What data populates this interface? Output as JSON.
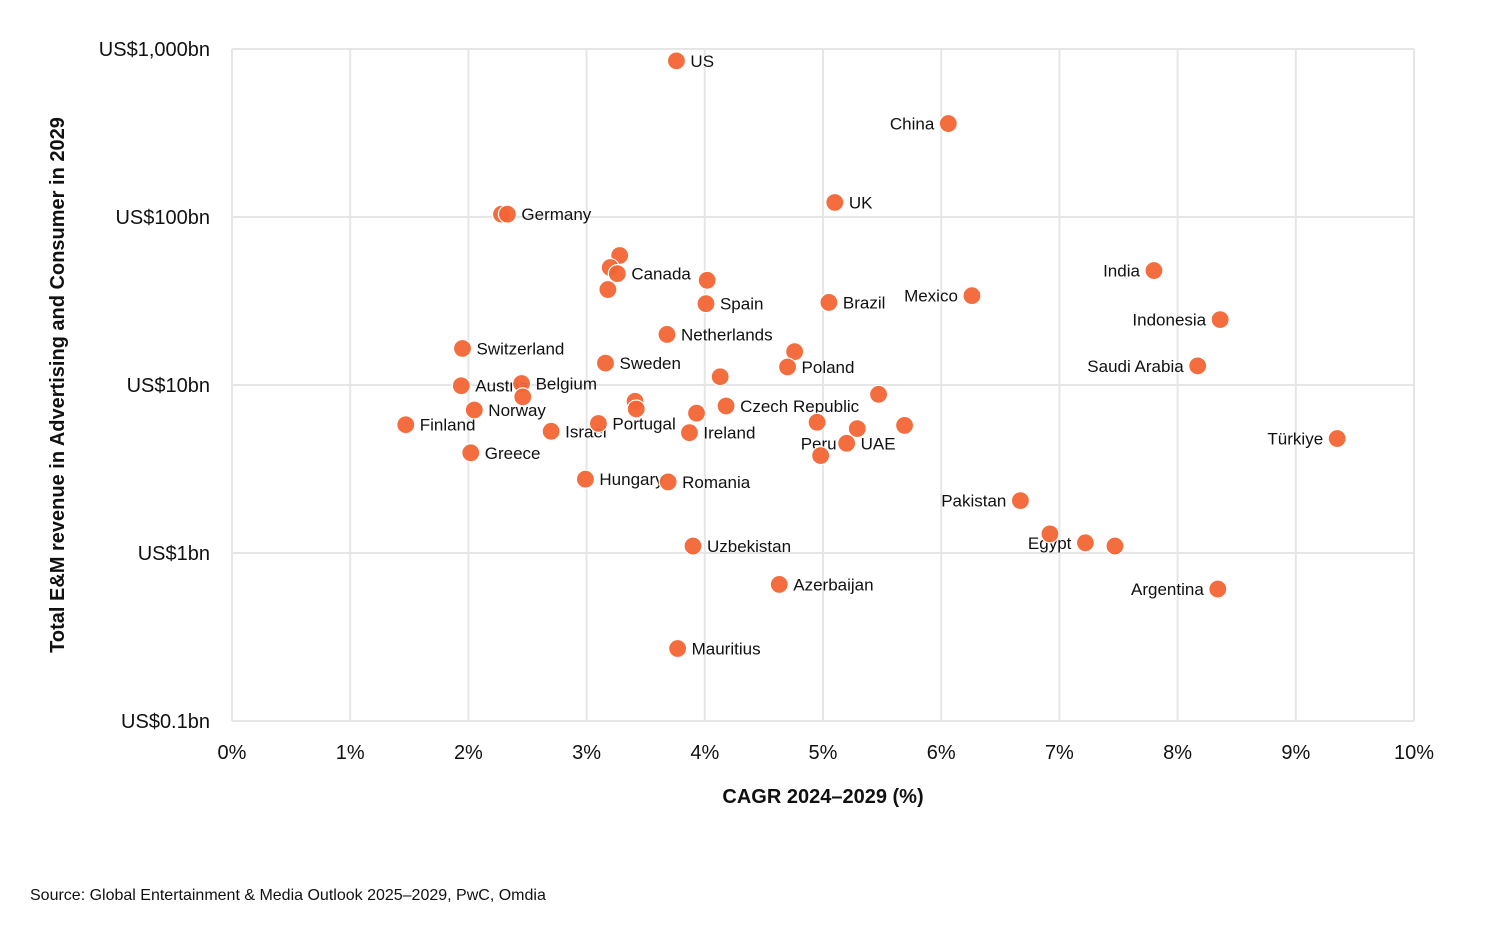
{
  "chart_data": {
    "type": "scatter",
    "xlabel": "CAGR 2024–2029 (%)",
    "ylabel": "Total E&M revenue in Advertising and Consumer in 2029",
    "xlim": [
      0,
      10
    ],
    "ylim": [
      0.1,
      1000
    ],
    "y_scale": "log",
    "grid": true,
    "x_ticks": [
      0,
      1,
      2,
      3,
      4,
      5,
      6,
      7,
      8,
      9,
      10
    ],
    "x_tick_labels": [
      "0%",
      "1%",
      "2%",
      "3%",
      "4%",
      "5%",
      "6%",
      "7%",
      "8%",
      "9%",
      "10%"
    ],
    "y_ticks": [
      0.1,
      1,
      10,
      100,
      1000
    ],
    "y_tick_labels": [
      "US$0.1bn",
      "US$1bn",
      "US$10bn",
      "US$100bn",
      "US$1,000bn"
    ],
    "marker_color": "#f26534",
    "points": [
      {
        "label": "US",
        "x": 3.76,
        "y": 850,
        "label_side": "right"
      },
      {
        "label": "China",
        "x": 6.06,
        "y": 360,
        "label_side": "left"
      },
      {
        "label": "UK",
        "x": 5.1,
        "y": 122,
        "label_side": "right"
      },
      {
        "label": "",
        "x": 2.28,
        "y": 104,
        "label_side": "none"
      },
      {
        "label": "Germany",
        "x": 2.33,
        "y": 104,
        "label_side": "right"
      },
      {
        "label": "",
        "x": 3.28,
        "y": 59,
        "label_side": "none"
      },
      {
        "label": "",
        "x": 3.2,
        "y": 50,
        "label_side": "none"
      },
      {
        "label": "Canada",
        "x": 3.26,
        "y": 46,
        "label_side": "right"
      },
      {
        "label": "",
        "x": 3.18,
        "y": 37,
        "label_side": "none"
      },
      {
        "label": "",
        "x": 4.02,
        "y": 42,
        "label_side": "none"
      },
      {
        "label": "Spain",
        "x": 4.01,
        "y": 30.5,
        "label_side": "right"
      },
      {
        "label": "Brazil",
        "x": 5.05,
        "y": 31,
        "label_side": "right"
      },
      {
        "label": "Mexico",
        "x": 6.26,
        "y": 34,
        "label_side": "left"
      },
      {
        "label": "India",
        "x": 7.8,
        "y": 48,
        "label_side": "left"
      },
      {
        "label": "Indonesia",
        "x": 8.36,
        "y": 24.5,
        "label_side": "left"
      },
      {
        "label": "Netherlands",
        "x": 3.68,
        "y": 20,
        "label_side": "right"
      },
      {
        "label": "",
        "x": 4.76,
        "y": 15.8,
        "label_side": "none"
      },
      {
        "label": "Poland",
        "x": 4.7,
        "y": 12.8,
        "label_side": "right"
      },
      {
        "label": "Saudi Arabia",
        "x": 8.17,
        "y": 13,
        "label_side": "left"
      },
      {
        "label": "Switzerland",
        "x": 1.95,
        "y": 16.5,
        "label_side": "right"
      },
      {
        "label": "Sweden",
        "x": 3.16,
        "y": 13.5,
        "label_side": "right"
      },
      {
        "label": "",
        "x": 4.13,
        "y": 11.2,
        "label_side": "none"
      },
      {
        "label": "Austria",
        "x": 1.94,
        "y": 9.9,
        "label_side": "right"
      },
      {
        "label": "Belgium",
        "x": 2.45,
        "y": 10.2,
        "label_side": "right"
      },
      {
        "label": "",
        "x": 2.46,
        "y": 8.5,
        "label_side": "none"
      },
      {
        "label": "",
        "x": 3.41,
        "y": 8,
        "label_side": "none"
      },
      {
        "label": "",
        "x": 3.42,
        "y": 7.2,
        "label_side": "none"
      },
      {
        "label": "",
        "x": 5.47,
        "y": 8.8,
        "label_side": "none"
      },
      {
        "label": "Czech Republic",
        "x": 4.18,
        "y": 7.5,
        "label_side": "right"
      },
      {
        "label": "Norway",
        "x": 2.05,
        "y": 7.1,
        "label_side": "right"
      },
      {
        "label": "",
        "x": 3.93,
        "y": 6.8,
        "label_side": "none"
      },
      {
        "label": "Finland",
        "x": 1.47,
        "y": 5.8,
        "label_side": "right"
      },
      {
        "label": "Portugal",
        "x": 3.1,
        "y": 5.9,
        "label_side": "right"
      },
      {
        "label": "Israel",
        "x": 2.7,
        "y": 5.3,
        "label_side": "right"
      },
      {
        "label": "Ireland",
        "x": 3.87,
        "y": 5.2,
        "label_side": "right"
      },
      {
        "label": "",
        "x": 4.95,
        "y": 6,
        "label_side": "none"
      },
      {
        "label": "",
        "x": 5.29,
        "y": 5.5,
        "label_side": "none"
      },
      {
        "label": "",
        "x": 5.69,
        "y": 5.75,
        "label_side": "none"
      },
      {
        "label": "Peru",
        "x": 4.98,
        "y": 3.8,
        "label_side": "left-above"
      },
      {
        "label": "UAE",
        "x": 5.2,
        "y": 4.5,
        "label_side": "right"
      },
      {
        "label": "Türkiye",
        "x": 9.35,
        "y": 4.8,
        "label_side": "left"
      },
      {
        "label": "Greece",
        "x": 2.02,
        "y": 3.95,
        "label_side": "right"
      },
      {
        "label": "Hungary",
        "x": 2.99,
        "y": 2.75,
        "label_side": "right"
      },
      {
        "label": "Romania",
        "x": 3.69,
        "y": 2.65,
        "label_side": "right"
      },
      {
        "label": "Pakistan",
        "x": 6.67,
        "y": 2.05,
        "label_side": "left"
      },
      {
        "label": "",
        "x": 6.92,
        "y": 1.3,
        "label_side": "none"
      },
      {
        "label": "Egypt",
        "x": 7.22,
        "y": 1.15,
        "label_side": "left"
      },
      {
        "label": "",
        "x": 7.47,
        "y": 1.1,
        "label_side": "none"
      },
      {
        "label": "Uzbekistan",
        "x": 3.9,
        "y": 1.1,
        "label_side": "right"
      },
      {
        "label": "Azerbaijan",
        "x": 4.63,
        "y": 0.65,
        "label_side": "right"
      },
      {
        "label": "Argentina",
        "x": 8.34,
        "y": 0.61,
        "label_side": "left"
      },
      {
        "label": "Mauritius",
        "x": 3.77,
        "y": 0.27,
        "label_side": "right"
      }
    ]
  },
  "source": "Source: Global Entertainment & Media Outlook 2025–2029, PwC, Omdia"
}
